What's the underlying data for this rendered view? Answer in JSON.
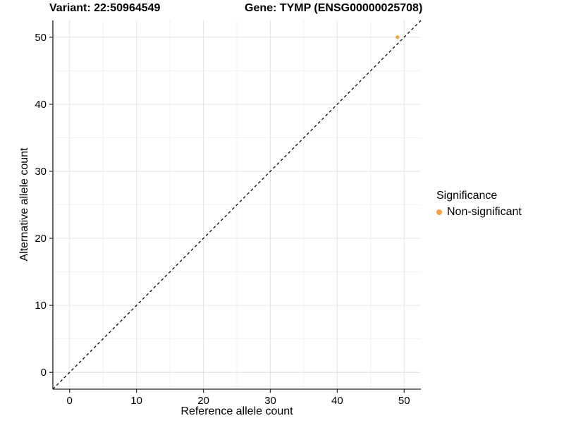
{
  "titles": {
    "variant": "Variant: 22:50964549",
    "gene": "Gene: TYMP (ENSG00000025708)"
  },
  "chart_data": {
    "type": "scatter",
    "xlabel": "Reference allele count",
    "ylabel": "Alternative allele count",
    "xlim": [
      -2.5,
      52.5
    ],
    "ylim": [
      -2.5,
      52.5
    ],
    "xticks": [
      0,
      10,
      20,
      30,
      40,
      50
    ],
    "yticks": [
      0,
      10,
      20,
      30,
      40,
      50
    ],
    "x_minor_ticks": [
      5,
      15,
      25,
      35,
      45
    ],
    "y_minor_ticks": [
      5,
      15,
      25,
      35,
      45
    ],
    "grid": "major-and-minor",
    "points": [
      {
        "x": 49,
        "y": 50,
        "series": "Non-significant"
      }
    ],
    "reference_line": {
      "kind": "identity",
      "slope": 1,
      "intercept": 0,
      "style": "dashed"
    },
    "legend": {
      "title": "Significance",
      "position": "right",
      "items": [
        {
          "label": "Non-significant",
          "color": "#F9A242"
        }
      ]
    }
  },
  "colors": {
    "point": "#F9A242",
    "axis_line": "#464646",
    "tick_mark": "#333333",
    "grid_major": "#E4E4E4",
    "grid_minor": "#F1F1F1",
    "dashed_line": "#0a0a0a",
    "text": "#000000"
  }
}
